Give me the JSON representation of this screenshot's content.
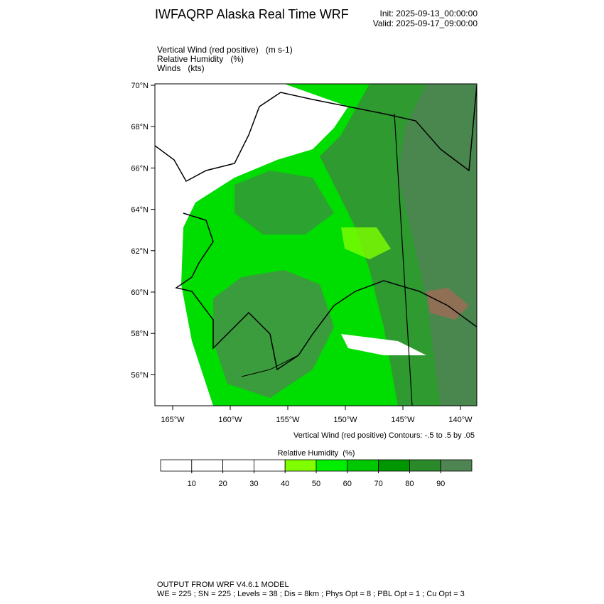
{
  "header": {
    "title": "IWFAQRP Alaska Real Time WRF",
    "init": "Init: 2025-09-13_00:00:00",
    "valid": "Valid: 2025-09-17_09:00:00"
  },
  "fields": [
    "Vertical Wind (red positive)   (m s-1)",
    "Relative Humidity   (%)",
    "Winds   (kts)"
  ],
  "map": {
    "lat_labels": [
      "70°N",
      "68°N",
      "66°N",
      "64°N",
      "62°N",
      "60°N",
      "58°N",
      "56°N"
    ],
    "lon_labels": [
      "165°W",
      "160°W",
      "155°W",
      "150°W",
      "145°W",
      "140°W"
    ],
    "contour_note": "Vertical Wind (red positive) Contours: -.5 to .5 by .05"
  },
  "colorbar": {
    "title": "Relative Humidity  (%)",
    "colors": [
      "#ffffff",
      "#ffffff",
      "#ffffff",
      "#ffffff",
      "#80ff00",
      "#00ee00",
      "#00c800",
      "#009600",
      "#2a8a2a",
      "#4e8552"
    ],
    "ticks": [
      10,
      20,
      30,
      40,
      50,
      60,
      70,
      80,
      90
    ]
  },
  "footer": {
    "line1": "OUTPUT FROM WRF V4.6.1 MODEL",
    "line2": "WE = 225 ; SN = 225 ; Levels = 38 ; Dis = 8km ; Phys Opt = 8 ; PBL Opt = 1 ; Cu Opt = 3"
  }
}
